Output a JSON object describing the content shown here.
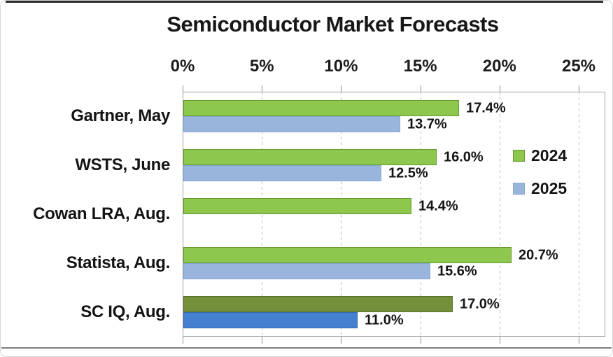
{
  "chart_data": {
    "type": "bar",
    "orientation": "horizontal",
    "title": "Semiconductor Market Forecasts",
    "x_axis": {
      "position": "top",
      "min": 0,
      "max": 25,
      "tick_step": 5,
      "ticks": [
        "0%",
        "5%",
        "10%",
        "15%",
        "20%",
        "25%"
      ]
    },
    "grid": "dashed-vertical",
    "categories": [
      "Gartner, May",
      "WSTS, June",
      "Cowan LRA, Aug.",
      "Statista, Aug.",
      "SC IQ, Aug."
    ],
    "series": [
      {
        "name": "2024",
        "values": [
          17.4,
          16.0,
          14.4,
          20.7,
          17.0
        ]
      },
      {
        "name": "2025",
        "values": [
          13.7,
          12.5,
          null,
          15.6,
          11.0
        ]
      }
    ],
    "rows": [
      {
        "label": "Gartner, May",
        "bars": [
          {
            "series": "2024",
            "value": 17.4,
            "display": "17.4%",
            "fill": "#8dc74e",
            "edge": "#67992f"
          },
          {
            "series": "2025",
            "value": 13.7,
            "display": "13.7%",
            "fill": "#9ab5dc",
            "edge": "#85a7d2"
          }
        ]
      },
      {
        "label": "WSTS, June",
        "bars": [
          {
            "series": "2024",
            "value": 16.0,
            "display": "16.0%",
            "fill": "#8dc74e",
            "edge": "#67992f"
          },
          {
            "series": "2025",
            "value": 12.5,
            "display": "12.5%",
            "fill": "#9ab5dc",
            "edge": "#85a7d2"
          }
        ]
      },
      {
        "label": "Cowan LRA, Aug.",
        "bars": [
          {
            "series": "2024",
            "value": 14.4,
            "display": "14.4%",
            "fill": "#8dc74e",
            "edge": "#67992f"
          }
        ]
      },
      {
        "label": "Statista, Aug.",
        "bars": [
          {
            "series": "2024",
            "value": 20.7,
            "display": "20.7%",
            "fill": "#8dc74e",
            "edge": "#67992f"
          },
          {
            "series": "2025",
            "value": 15.6,
            "display": "15.6%",
            "fill": "#9ab5dc",
            "edge": "#85a7d2"
          }
        ]
      },
      {
        "label": "SC IQ, Aug.",
        "bars": [
          {
            "series": "2024",
            "value": 17.0,
            "display": "17.0%",
            "fill": "#75903a",
            "edge": "#5a7030"
          },
          {
            "series": "2025",
            "value": 11.0,
            "display": "11.0%",
            "fill": "#4480d0",
            "edge": "#3568ab"
          }
        ]
      }
    ],
    "legend": {
      "position": "right-inside",
      "items": [
        {
          "label": "2024",
          "color": "#8dc74e",
          "edge": "#67992f"
        },
        {
          "label": "2025",
          "color": "#9ab5dc",
          "edge": "#85a7d2"
        }
      ]
    },
    "colors": {
      "green_2024": "#8dc74e",
      "light_blue_2025": "#9ab5dc",
      "olive_2024_sciq": "#75903a",
      "strong_blue_2025_sciq": "#4480d0",
      "grid": "#bdbdbd",
      "frame": "#a3a3a3",
      "text": "#171717"
    }
  }
}
